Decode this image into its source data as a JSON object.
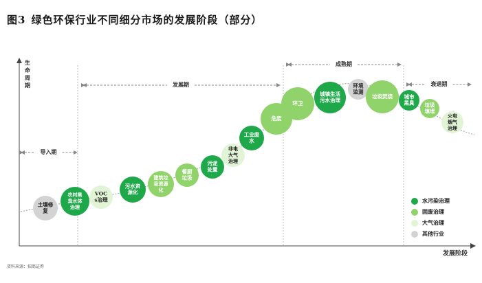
{
  "title": {
    "number": "图3",
    "text": "绿色环保行业不同细分市场的发展阶段（部分）"
  },
  "source": "资料来源：招商证券",
  "axes": {
    "y_label": [
      "生",
      "命",
      "周",
      "期"
    ],
    "x_label": "发展阶段"
  },
  "stages": [
    {
      "id": "intro",
      "label": "导入期"
    },
    {
      "id": "growth",
      "label": "发展期"
    },
    {
      "id": "mature",
      "label": "成熟期"
    },
    {
      "id": "decline",
      "label": "衰退期"
    }
  ],
  "legend": [
    {
      "key": "water",
      "label": "水污染治理",
      "color": "#1fa84a"
    },
    {
      "key": "solid",
      "label": "固废治理",
      "color": "#8fd36a"
    },
    {
      "key": "air",
      "label": "大气治理",
      "color": "#e2f4d6"
    },
    {
      "key": "other",
      "label": "其他行业",
      "color": "#d3d3d3"
    }
  ],
  "segments": [
    {
      "lines": [
        "土壤修",
        "复"
      ],
      "category": "other"
    },
    {
      "lines": [
        "农村黑",
        "臭水体",
        "治理"
      ],
      "category": "water"
    },
    {
      "lines": [
        "VOC",
        "s治理"
      ],
      "category": "air"
    },
    {
      "lines": [
        "污水资",
        "源化"
      ],
      "category": "water"
    },
    {
      "lines": [
        "建筑垃",
        "圾资源",
        "化"
      ],
      "category": "solid"
    },
    {
      "lines": [
        "餐厨",
        "垃圾"
      ],
      "category": "solid"
    },
    {
      "lines": [
        "污泥",
        "处置"
      ],
      "category": "water"
    },
    {
      "lines": [
        "非电",
        "大气",
        "治理"
      ],
      "category": "air"
    },
    {
      "lines": [
        "工业废",
        "水"
      ],
      "category": "water"
    },
    {
      "lines": [
        "危废"
      ],
      "category": "solid"
    },
    {
      "lines": [
        "环卫"
      ],
      "category": "solid"
    },
    {
      "lines": [
        "城镇生活",
        "污水治理"
      ],
      "category": "water"
    },
    {
      "lines": [
        "环境",
        "监测"
      ],
      "category": "other"
    },
    {
      "lines": [
        "垃圾焚烧"
      ],
      "category": "solid"
    },
    {
      "lines": [
        "城市",
        "黑臭"
      ],
      "category": "water"
    },
    {
      "lines": [
        "垃圾",
        "填埋"
      ],
      "category": "solid"
    },
    {
      "lines": [
        "火电",
        "烟气",
        "治理"
      ],
      "category": "air"
    }
  ]
}
